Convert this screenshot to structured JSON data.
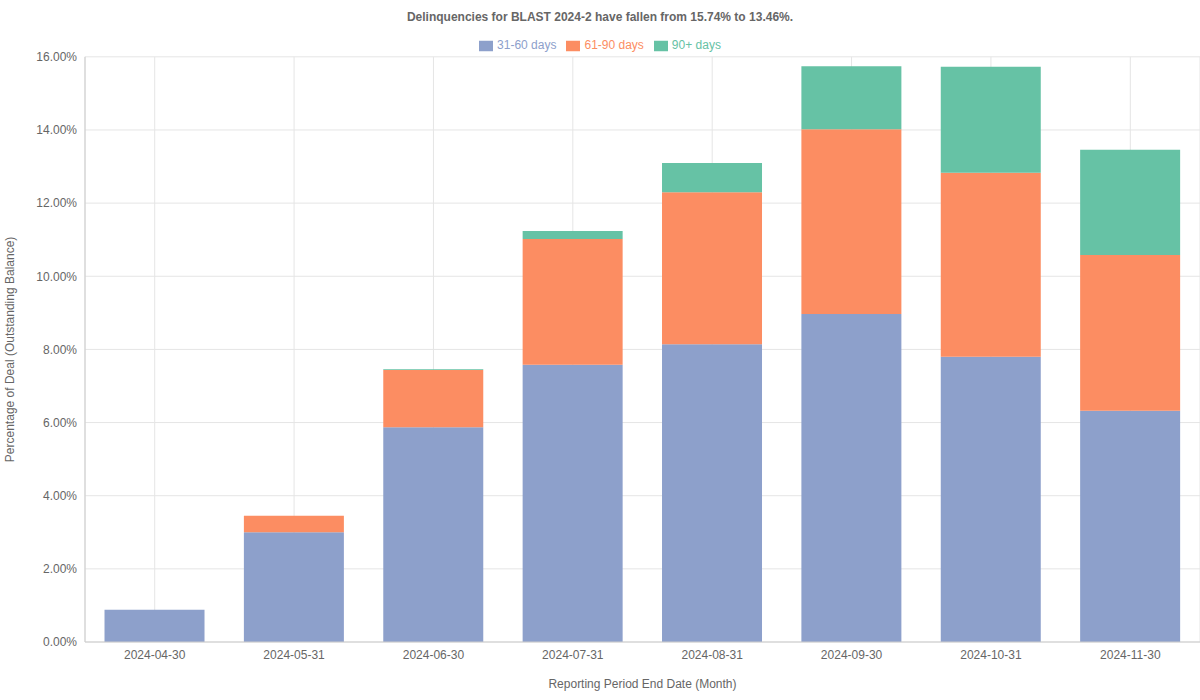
{
  "chart_data": {
    "type": "bar",
    "title": "Delinquencies for BLAST 2024-2 have fallen from 15.74% to 13.46%.",
    "x_label": "Reporting Period End Date (Month)",
    "y_label": "Percentage of Deal (Outstanding Balance)",
    "categories": [
      "2024-04-30",
      "2024-05-31",
      "2024-06-30",
      "2024-07-31",
      "2024-08-31",
      "2024-09-30",
      "2024-10-31",
      "2024-11-30"
    ],
    "series": [
      {
        "name": "31-60 days",
        "color": "#8da0cb",
        "values": [
          0.88,
          3.0,
          5.87,
          7.58,
          8.14,
          8.97,
          7.8,
          6.32
        ]
      },
      {
        "name": "61-90 days",
        "color": "#fc8d62",
        "values": [
          0,
          0.45,
          1.57,
          3.44,
          4.16,
          5.05,
          5.03,
          4.26
        ]
      },
      {
        "name": "90+ days",
        "color": "#66c2a5",
        "values": [
          0,
          0,
          0.02,
          0.22,
          0.8,
          1.72,
          2.9,
          2.88
        ]
      }
    ],
    "stacked": true,
    "grid": true,
    "legend": "top",
    "ylim": [
      0,
      16
    ],
    "yticks": [
      {
        "value": 0,
        "label": "0.00%"
      },
      {
        "value": 2,
        "label": "2.00%"
      },
      {
        "value": 4,
        "label": "4.00%"
      },
      {
        "value": 6,
        "label": "6.00%"
      },
      {
        "value": 8,
        "label": "8.00%"
      },
      {
        "value": 10,
        "label": "10.00%"
      },
      {
        "value": 12,
        "label": "12.00%"
      },
      {
        "value": 14,
        "label": "14.00%"
      },
      {
        "value": 16,
        "label": "16.00%"
      }
    ]
  }
}
